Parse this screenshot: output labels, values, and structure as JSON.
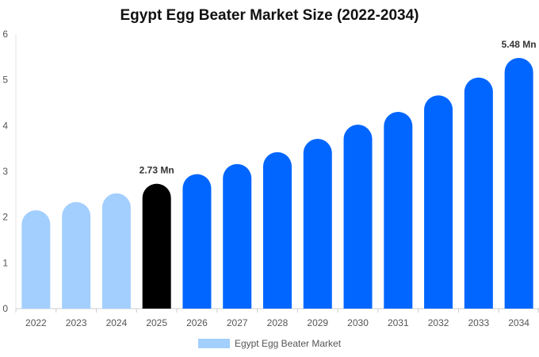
{
  "chart_data": {
    "type": "bar",
    "title": "Egypt Egg Beater Market Size (2022-2034)",
    "categories": [
      "2022",
      "2023",
      "2024",
      "2025",
      "2026",
      "2027",
      "2028",
      "2029",
      "2030",
      "2031",
      "2032",
      "2033",
      "2034"
    ],
    "series": [
      {
        "name": "Egypt Egg Beater Market",
        "values": [
          2.15,
          2.33,
          2.52,
          2.73,
          2.94,
          3.16,
          3.42,
          3.71,
          4.02,
          4.3,
          4.66,
          5.05,
          5.48
        ]
      }
    ],
    "bar_colors": [
      "#a3cfff",
      "#a3cfff",
      "#a3cfff",
      "#000000",
      "#0066ff",
      "#0066ff",
      "#0066ff",
      "#0066ff",
      "#0066ff",
      "#0066ff",
      "#0066ff",
      "#0066ff",
      "#0066ff"
    ],
    "data_labels": [
      {
        "index": 3,
        "text": "2.73 Mn"
      },
      {
        "index": 12,
        "text": "5.48 Mn"
      }
    ],
    "yticks": [
      "0",
      "1",
      "2",
      "3",
      "4",
      "5",
      "6"
    ],
    "ylim": [
      0,
      6
    ],
    "xlabel": "",
    "ylabel": "",
    "grid": false,
    "legend_position": "bottom"
  },
  "legend": {
    "label": "Egypt Egg Beater Market",
    "color": "#a3cfff"
  }
}
